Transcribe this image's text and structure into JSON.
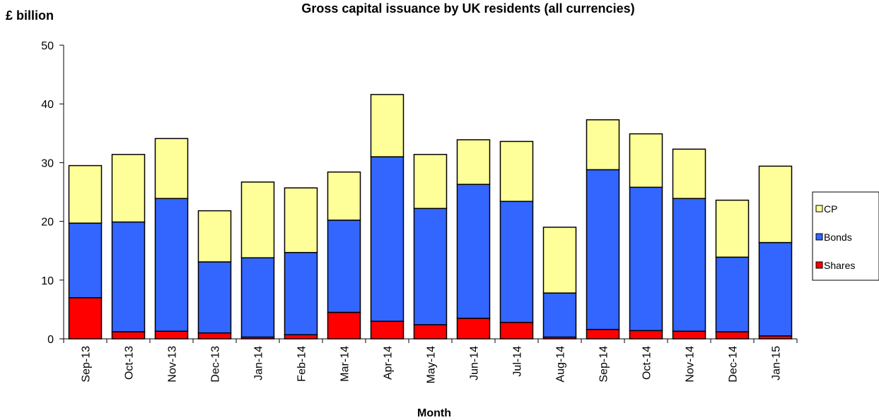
{
  "chart_data": {
    "type": "bar",
    "stacked": true,
    "title": "Gross capital issuance by UK residents (all currencies)",
    "unit_label": "£ billion",
    "xlabel": "Month",
    "ylabel": "",
    "ylim": [
      0,
      50
    ],
    "yticks": [
      0,
      10,
      20,
      30,
      40,
      50
    ],
    "grid": false,
    "legend_position": "right",
    "categories": [
      "Sep-13",
      "Oct-13",
      "Nov-13",
      "Dec-13",
      "Jan-14",
      "Feb-14",
      "Mar-14",
      "Apr-14",
      "May-14",
      "Jun-14",
      "Jul-14",
      "Aug-14",
      "Sep-14",
      "Oct-14",
      "Nov-14",
      "Dec-14",
      "Jan-15"
    ],
    "series": [
      {
        "name": "Shares",
        "color": "#ff0000",
        "values": [
          7.0,
          1.2,
          1.3,
          1.0,
          0.3,
          0.7,
          4.5,
          3.0,
          2.4,
          3.5,
          2.8,
          0.3,
          1.6,
          1.4,
          1.3,
          1.2,
          0.5
        ]
      },
      {
        "name": "Bonds",
        "color": "#3366ff",
        "values": [
          12.7,
          18.7,
          22.6,
          12.1,
          13.5,
          14.0,
          15.7,
          28.0,
          19.8,
          22.8,
          20.6,
          7.5,
          27.2,
          24.4,
          22.6,
          12.7,
          15.9
        ]
      },
      {
        "name": "CP",
        "color": "#ffff99",
        "values": [
          9.8,
          11.5,
          10.2,
          8.7,
          12.9,
          11.0,
          8.2,
          10.6,
          9.2,
          7.6,
          10.2,
          11.2,
          8.5,
          9.1,
          8.4,
          9.7,
          13.0
        ]
      }
    ]
  }
}
